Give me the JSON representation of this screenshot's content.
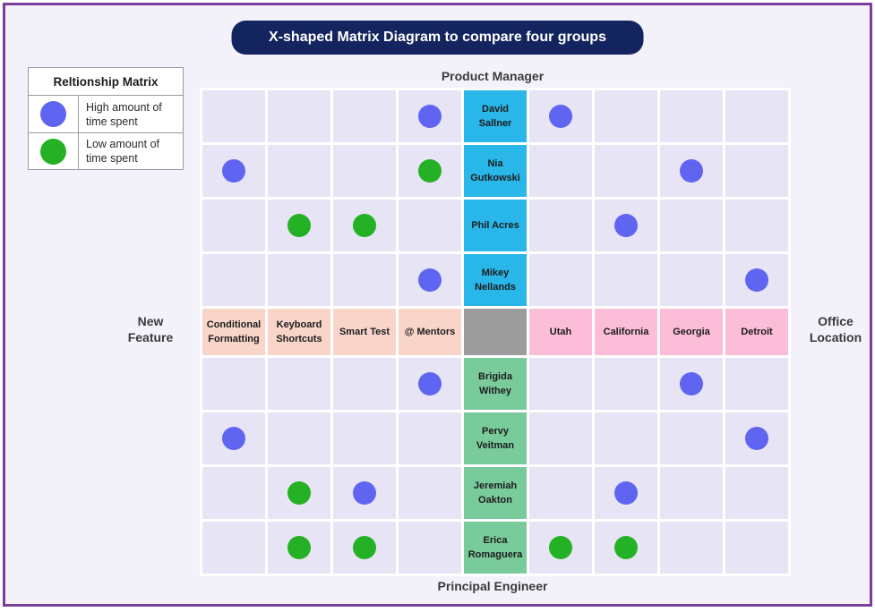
{
  "title": "X-shaped Matrix Diagram to compare four groups",
  "legend": {
    "title": "Reltionship Matrix",
    "items": [
      {
        "id": "high",
        "label": "High amount of time spent"
      },
      {
        "id": "low",
        "label": "Low amount of time spent"
      }
    ]
  },
  "axes": {
    "top": "Product Manager",
    "bottom": "Principal Engineer",
    "left": "New Feature",
    "right": "Office Location"
  },
  "matrix": {
    "rows": 9,
    "cols": 9,
    "top_names": [
      "David Sallner",
      "Nia Gutkowski",
      "Phil Acres",
      "Mikey Nellands"
    ],
    "bottom_names": [
      "Brigida Withey",
      "Pervy Veitman",
      "Jeremiah Oakton",
      "Erica Romaguera"
    ],
    "left_categories": [
      "Conditional Formatting",
      "Keyboard Shortcuts",
      "Smart Test",
      "@ Mentors"
    ],
    "right_categories": [
      "Utah",
      "California",
      "Georgia",
      "Detroit"
    ],
    "dots": [
      {
        "row": 1,
        "col": 4,
        "type": "high"
      },
      {
        "row": 1,
        "col": 6,
        "type": "high"
      },
      {
        "row": 2,
        "col": 1,
        "type": "high"
      },
      {
        "row": 2,
        "col": 4,
        "type": "low"
      },
      {
        "row": 2,
        "col": 8,
        "type": "high"
      },
      {
        "row": 3,
        "col": 2,
        "type": "low"
      },
      {
        "row": 3,
        "col": 3,
        "type": "low"
      },
      {
        "row": 3,
        "col": 7,
        "type": "high"
      },
      {
        "row": 4,
        "col": 4,
        "type": "high"
      },
      {
        "row": 4,
        "col": 9,
        "type": "high"
      },
      {
        "row": 6,
        "col": 4,
        "type": "high"
      },
      {
        "row": 6,
        "col": 8,
        "type": "high"
      },
      {
        "row": 7,
        "col": 1,
        "type": "high"
      },
      {
        "row": 7,
        "col": 9,
        "type": "high"
      },
      {
        "row": 8,
        "col": 2,
        "type": "low"
      },
      {
        "row": 8,
        "col": 3,
        "type": "high"
      },
      {
        "row": 8,
        "col": 7,
        "type": "high"
      },
      {
        "row": 9,
        "col": 2,
        "type": "low"
      },
      {
        "row": 9,
        "col": 3,
        "type": "low"
      },
      {
        "row": 9,
        "col": 6,
        "type": "low"
      },
      {
        "row": 9,
        "col": 7,
        "type": "low"
      }
    ]
  },
  "colors": {
    "frame-border": "#7a3e9b",
    "page-bg": "#f3f1fa",
    "banner-bg": "#14245e",
    "banner-text": "#ffffff",
    "cell-bg": "#e7e4f6",
    "pm-cell": "#29b6e8",
    "pe-cell": "#79cb9b",
    "feature-cell": "#f8d5c8",
    "location-cell": "#fcbdd8",
    "center-cell": "#9c9c9c",
    "high-dot": "#6065f1",
    "low-dot": "#25b125",
    "label-text": "#3b3b3b"
  }
}
